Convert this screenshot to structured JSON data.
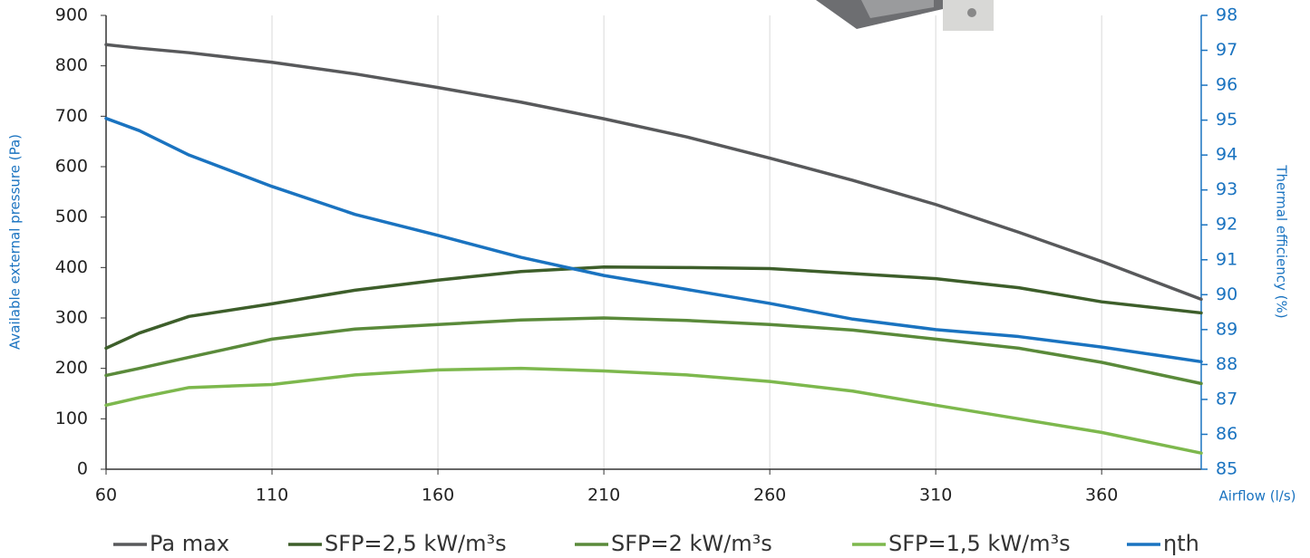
{
  "chart_data": {
    "type": "line",
    "x_label": "Airflow (l/s)",
    "y_label": "Available external pressure (Pa)",
    "y2_label": "Thermal efficiency (%)",
    "x": [
      60,
      70,
      85,
      110,
      135,
      160,
      185,
      210,
      235,
      260,
      285,
      310,
      335,
      360,
      390
    ],
    "xlim": [
      60,
      390
    ],
    "xticks": [
      60,
      110,
      160,
      210,
      260,
      310,
      360
    ],
    "ylim": [
      0,
      900
    ],
    "yticks": [
      0,
      100,
      200,
      300,
      400,
      500,
      600,
      700,
      800,
      900
    ],
    "y2lim": [
      85,
      98
    ],
    "y2ticks": [
      85,
      86,
      87,
      88,
      89,
      90,
      91,
      92,
      93,
      94,
      95,
      96,
      97,
      98
    ],
    "grid": true,
    "series": [
      {
        "name": "Pa max",
        "color": "#58595b",
        "values": [
          842,
          835,
          826,
          807,
          784,
          757,
          728,
          695,
          659,
          617,
          573,
          525,
          470,
          412,
          337
        ]
      },
      {
        "name": "SFP=2,5 kW/m³s",
        "color": "#3d5e2a",
        "values": [
          240,
          270,
          303,
          328,
          355,
          375,
          392,
          401,
          400,
          398,
          388,
          378,
          360,
          332,
          310
        ]
      },
      {
        "name": "SFP=2 kW/m³s",
        "color": "#5a8a3a",
        "values": [
          186,
          200,
          222,
          258,
          278,
          287,
          296,
          300,
          295,
          287,
          276,
          258,
          240,
          212,
          170
        ]
      },
      {
        "name": "SFP=1,5 kW/m³s",
        "color": "#7db84d",
        "values": [
          127,
          142,
          162,
          168,
          187,
          197,
          200,
          195,
          187,
          174,
          155,
          127,
          100,
          73,
          32
        ]
      },
      {
        "name": "ηth",
        "color": "#1a73c0",
        "axis": "y2",
        "values": [
          95.05,
          94.7,
          94.0,
          93.1,
          92.3,
          91.7,
          91.07,
          90.55,
          90.15,
          89.75,
          89.3,
          89.0,
          88.8,
          88.5,
          88.08
        ]
      }
    ]
  }
}
